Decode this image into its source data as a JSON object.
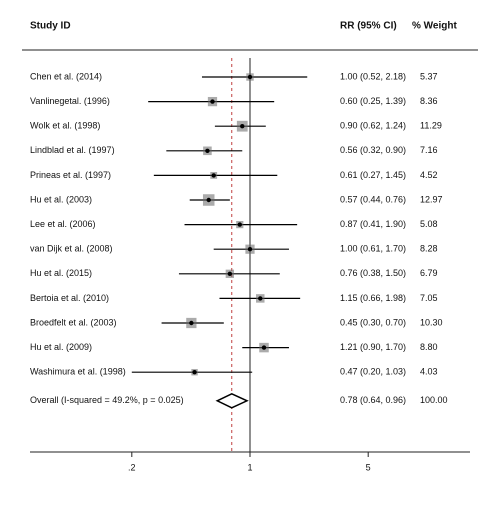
{
  "chart_data": {
    "type": "forest",
    "headers": {
      "study": "Study ID",
      "effect": "RR (95% CI)",
      "weight": "% Weight"
    },
    "categories": [
      "Chen et al. (2014)",
      "Vanlinegetal. (1996)",
      "Wolk et al. (1998)",
      "Lindblad et al. (1997)",
      "Prineas et al. (1997)",
      "Hu et al. (2003)",
      "Lee et al. (2006)",
      "van Dijk et al. (2008)",
      "Hu et al. (2015)",
      "Bertoia et al. (2010)",
      "Broedfelt et al. (2003)",
      "Hu et al. (2009)",
      "Washimura et al. (1998)"
    ],
    "values": [
      1.0,
      0.6,
      0.9,
      0.56,
      0.61,
      0.57,
      0.87,
      1.0,
      0.76,
      1.15,
      0.45,
      1.21,
      0.47
    ],
    "lower": [
      0.52,
      0.25,
      0.62,
      0.32,
      0.27,
      0.44,
      0.41,
      0.61,
      0.38,
      0.66,
      0.3,
      0.9,
      0.2
    ],
    "upper": [
      2.18,
      1.39,
      1.24,
      0.9,
      1.45,
      0.76,
      1.9,
      1.7,
      1.5,
      1.98,
      0.7,
      1.7,
      1.03
    ],
    "value_labels": [
      "1.00 (0.52, 2.18)",
      "0.60 (0.25, 1.39)",
      "0.90 (0.62, 1.24)",
      "0.56 (0.32, 0.90)",
      "0.61 (0.27, 1.45)",
      "0.57 (0.44, 0.76)",
      "0.87 (0.41, 1.90)",
      "1.00 (0.61, 1.70)",
      "0.76 (0.38, 1.50)",
      "1.15 (0.66, 1.98)",
      "0.45 (0.30, 0.70)",
      "1.21 (0.90, 1.70)",
      "0.47 (0.20, 1.03)"
    ],
    "weights": [
      5.37,
      8.36,
      11.29,
      7.16,
      4.52,
      12.97,
      5.08,
      8.28,
      6.79,
      7.05,
      10.3,
      8.8,
      4.03
    ],
    "weight_labels": [
      "5.37",
      "8.36",
      "11.29",
      "7.16",
      "4.52",
      "12.97",
      "5.08",
      "8.28",
      "6.79",
      "7.05",
      "10.30",
      "8.80",
      "4.03"
    ],
    "overall": {
      "label": "Overall (I-squared = 49.2%, p = 0.025)",
      "value": 0.78,
      "lower": 0.64,
      "upper": 0.96,
      "value_label": "0.78 (0.64, 0.96)",
      "weight": 100,
      "weight_label": "100.00"
    },
    "null_line": 1,
    "log_scale": true,
    "xlim": [
      0.05,
      20
    ],
    "xticks": [
      {
        "value": 0.2,
        "label": ".2"
      },
      1,
      {
        "value": 5,
        "label": "5"
      }
    ],
    "color": "#000000"
  }
}
